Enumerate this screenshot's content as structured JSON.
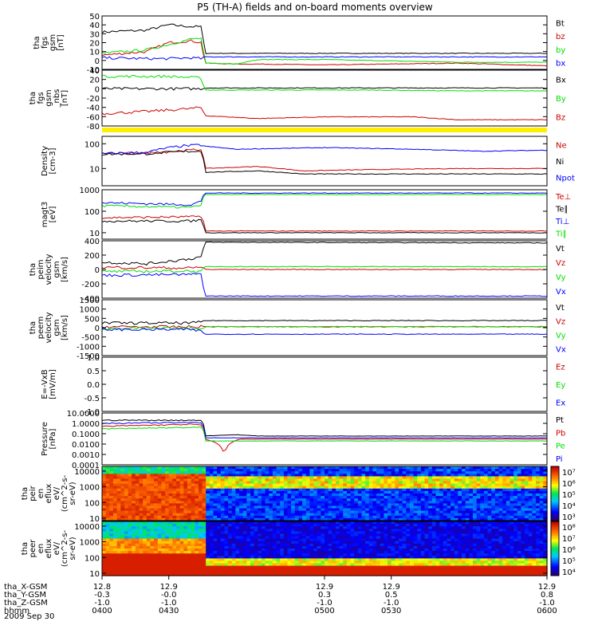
{
  "title": "P5 (TH-A) fields and on-board moments overview",
  "date_label": "2009 Sep 30",
  "colors": {
    "black": "#000000",
    "red": "#d00000",
    "green": "#00e000",
    "blue": "#0000ff",
    "yellow": "#ffee00"
  },
  "chart_data": [
    {
      "type": "line",
      "panel": "fgs",
      "ylabel": [
        "tha",
        "fgs",
        "gsm",
        "[nT]"
      ],
      "ylim": [
        -10,
        50
      ],
      "yticks": [
        "50",
        "40",
        "30",
        "20",
        "10",
        "0",
        "-10"
      ],
      "xlim": [
        400,
        600
      ],
      "series": [
        {
          "name": "Bt",
          "color": "#000000",
          "x": [
            400,
            420,
            430,
            440,
            445,
            446,
            460,
            470,
            500,
            560,
            600
          ],
          "values": [
            32,
            34,
            40,
            38,
            38,
            8,
            8,
            8,
            8,
            8,
            8
          ]
        },
        {
          "name": "bz",
          "color": "#d00000",
          "x": [
            400,
            420,
            430,
            440,
            445,
            446,
            460,
            470,
            500,
            560,
            600
          ],
          "values": [
            6,
            10,
            20,
            22,
            20,
            -3,
            -4,
            -4,
            -5,
            -3,
            -6
          ]
        },
        {
          "name": "by",
          "color": "#00e000",
          "x": [
            400,
            420,
            430,
            440,
            445,
            446,
            460,
            470,
            500,
            560,
            600
          ],
          "values": [
            8,
            12,
            18,
            24,
            25,
            -3,
            -4,
            1,
            1,
            -2,
            -2
          ]
        },
        {
          "name": "bx",
          "color": "#0000ff",
          "x": [
            400,
            420,
            430,
            440,
            445,
            446,
            460,
            470,
            500,
            560,
            600
          ],
          "values": [
            3,
            2,
            2,
            3,
            2,
            4,
            4,
            4,
            4,
            4,
            4
          ]
        }
      ]
    },
    {
      "type": "line",
      "panel": "fgs-pg",
      "ylabel": [
        "tha",
        "fgs",
        "gsm",
        "_nbs",
        "[nT]"
      ],
      "ylim": [
        -90,
        45
      ],
      "yticks": [
        "40",
        "20",
        "0",
        "-20",
        "-40",
        "-60",
        "-80"
      ],
      "xlim": [
        400,
        600
      ],
      "series": [
        {
          "name": "Bx",
          "color": "#000000",
          "x": [
            400,
            445,
            446,
            600
          ],
          "values": [
            0,
            0,
            2,
            2
          ]
        },
        {
          "name": "By",
          "color": "#00e000",
          "x": [
            400,
            430,
            445,
            446,
            520,
            560,
            600
          ],
          "values": [
            30,
            30,
            26,
            -3,
            -3,
            -5,
            -5
          ]
        },
        {
          "name": "Bz",
          "color": "#d00000",
          "x": [
            400,
            420,
            440,
            445,
            446,
            470,
            500,
            540,
            560,
            600
          ],
          "values": [
            -60,
            -55,
            -48,
            -45,
            -65,
            -72,
            -68,
            -68,
            -75,
            -75
          ]
        }
      ]
    },
    {
      "type": "line",
      "panel": "density",
      "ylabel": [
        "Density",
        "[cm-3]"
      ],
      "yscale": "log",
      "ylim": [
        2,
        200
      ],
      "yticks": [
        "100",
        "10"
      ],
      "xlim": [
        400,
        600
      ],
      "series": [
        {
          "name": "Ne",
          "color": "#d00000",
          "x": [
            400,
            420,
            440,
            445,
            446,
            470,
            490,
            520,
            560,
            600
          ],
          "values": [
            40,
            42,
            55,
            60,
            10,
            12,
            8,
            9,
            10,
            10
          ]
        },
        {
          "name": "Ni",
          "color": "#000000",
          "x": [
            400,
            420,
            440,
            445,
            446,
            470,
            490,
            520,
            560,
            600
          ],
          "values": [
            38,
            40,
            50,
            50,
            7,
            8,
            6,
            6,
            6,
            6
          ]
        },
        {
          "name": "Npot",
          "color": "#0000ff",
          "x": [
            400,
            420,
            435,
            445,
            446,
            460,
            500,
            540,
            570,
            600
          ],
          "values": [
            40,
            45,
            80,
            90,
            80,
            60,
            70,
            60,
            50,
            55
          ]
        }
      ]
    },
    {
      "type": "line",
      "panel": "temperature",
      "ylabel": [
        "magt3",
        "[eV]"
      ],
      "yscale": "log",
      "ylim": [
        5,
        1000
      ],
      "yticks": [
        "1000",
        "100",
        "10"
      ],
      "xlim": [
        400,
        600
      ],
      "series": [
        {
          "name": "Te⊥",
          "color": "#d00000",
          "x": [
            400,
            440,
            445,
            446,
            600
          ],
          "values": [
            50,
            55,
            60,
            12,
            12
          ]
        },
        {
          "name": "Te∥",
          "color": "#000000",
          "x": [
            400,
            440,
            445,
            446,
            600
          ],
          "values": [
            35,
            35,
            40,
            10,
            10
          ]
        },
        {
          "name": "Ti⊥",
          "color": "#0000ff",
          "x": [
            400,
            440,
            445,
            446,
            600
          ],
          "values": [
            250,
            200,
            300,
            700,
            700
          ]
        },
        {
          "name": "Ti∥",
          "color": "#00e000",
          "x": [
            400,
            440,
            445,
            446,
            600
          ],
          "values": [
            180,
            150,
            200,
            600,
            600
          ]
        }
      ]
    },
    {
      "type": "line",
      "panel": "peim-velocity",
      "ylabel": [
        "tha",
        "peim",
        "velocity",
        "gsm",
        "[km/s]"
      ],
      "ylim": [
        -400,
        400
      ],
      "yticks": [
        "400",
        "200",
        "0",
        "-200",
        "-400"
      ],
      "xlim": [
        400,
        600
      ],
      "series": [
        {
          "name": "Vt",
          "color": "#000000",
          "x": [
            400,
            420,
            440,
            445,
            446,
            600
          ],
          "values": [
            100,
            80,
            150,
            180,
            380,
            370
          ]
        },
        {
          "name": "Vz",
          "color": "#d00000",
          "x": [
            400,
            440,
            445,
            446,
            600
          ],
          "values": [
            30,
            20,
            40,
            0,
            0
          ]
        },
        {
          "name": "Vy",
          "color": "#00e000",
          "x": [
            400,
            440,
            445,
            446,
            600
          ],
          "values": [
            -30,
            -20,
            -40,
            40,
            40
          ]
        },
        {
          "name": "Vx",
          "color": "#0000ff",
          "x": [
            400,
            440,
            445,
            446,
            600
          ],
          "values": [
            -80,
            -70,
            -60,
            -370,
            -370
          ]
        }
      ]
    },
    {
      "type": "line",
      "panel": "peem-velocity",
      "ylabel": [
        "tha",
        "peem",
        "velocity",
        "gsm",
        "[km/s]"
      ],
      "ylim": [
        -1500,
        1500
      ],
      "yticks": [
        "1500",
        "1000",
        "500",
        "0",
        "-500",
        "-1000",
        "-1500"
      ],
      "xlim": [
        400,
        600
      ],
      "series": [
        {
          "name": "Vt",
          "color": "#000000",
          "x": [
            400,
            440,
            445,
            446,
            600
          ],
          "values": [
            250,
            250,
            300,
            380,
            380
          ]
        },
        {
          "name": "Vz",
          "color": "#d00000",
          "x": [
            400,
            440,
            445,
            446,
            600
          ],
          "values": [
            50,
            40,
            60,
            50,
            50
          ]
        },
        {
          "name": "Vy",
          "color": "#00e000",
          "x": [
            400,
            440,
            445,
            446,
            600
          ],
          "values": [
            -50,
            -40,
            -60,
            60,
            60
          ]
        },
        {
          "name": "Vx",
          "color": "#0000ff",
          "x": [
            400,
            440,
            445,
            446,
            600
          ],
          "values": [
            -100,
            -100,
            -200,
            -350,
            -350
          ]
        }
      ]
    },
    {
      "type": "line",
      "panel": "efield",
      "ylabel": [
        "E=-VxB",
        "[mV/m]"
      ],
      "ylim": [
        -1,
        1
      ],
      "yticks": [
        "1.0",
        "0.5",
        "0.0",
        "-0.5",
        "-1.0"
      ],
      "xlim": [
        400,
        600
      ],
      "series": [
        {
          "name": "Ez",
          "color": "#d00000",
          "x": [],
          "values": []
        },
        {
          "name": "Ey",
          "color": "#00e000",
          "x": [],
          "values": []
        },
        {
          "name": "Ex",
          "color": "#0000ff",
          "x": [],
          "values": []
        }
      ]
    },
    {
      "type": "line",
      "panel": "pressure",
      "ylabel": [
        "Pressure",
        "[nPa]"
      ],
      "yscale": "log",
      "ylim": [
        0.0001,
        10
      ],
      "yticks": [
        "10.0000",
        "1.0000",
        "0.1000",
        "0.0100",
        "0.0010",
        "0.0001"
      ],
      "xlim": [
        400,
        600
      ],
      "series": [
        {
          "name": "Pt",
          "color": "#000000",
          "x": [
            400,
            440,
            445,
            446,
            460,
            470,
            600
          ],
          "values": [
            2.0,
            2.0,
            2.0,
            0.06,
            0.08,
            0.06,
            0.06
          ]
        },
        {
          "name": "Pb",
          "color": "#d00000",
          "x": [
            400,
            440,
            445,
            446,
            455,
            462,
            470,
            600
          ],
          "values": [
            0.5,
            0.8,
            0.7,
            0.03,
            0.0003,
            0.03,
            0.03,
            0.03
          ]
        },
        {
          "name": "Pe",
          "color": "#00e000",
          "x": [
            400,
            440,
            445,
            446,
            600
          ],
          "values": [
            0.3,
            0.4,
            0.4,
            0.02,
            0.02
          ]
        },
        {
          "name": "Pi",
          "color": "#0000ff",
          "x": [
            400,
            440,
            445,
            446,
            600
          ],
          "values": [
            1.0,
            1.2,
            1.2,
            0.04,
            0.04
          ]
        }
      ]
    },
    {
      "type": "heatmap",
      "panel": "peir-spectrogram",
      "ylabel": [
        "tha",
        "peir",
        "en",
        "eflux",
        "eV/",
        "(cm^2-s-",
        "sr-eV)"
      ],
      "yscale": "log",
      "ylim": [
        7,
        20000
      ],
      "yticks": [
        "10000",
        "1000",
        "100",
        "10"
      ],
      "colorbar": {
        "ticks": [
          "10⁷",
          "10⁶",
          "10⁵",
          "10⁴",
          "10³"
        ]
      }
    },
    {
      "type": "heatmap",
      "panel": "peer-spectrogram",
      "ylabel": [
        "tha",
        "peer",
        "en",
        "eflux",
        "eV/",
        "(cm^2-s-",
        "sr-eV)"
      ],
      "yscale": "log",
      "ylim": [
        7,
        20000
      ],
      "yticks": [
        "10000",
        "1000",
        "100",
        "10"
      ],
      "colorbar": {
        "ticks": [
          "10⁸",
          "10⁷",
          "10⁶",
          "10⁵",
          "10⁴"
        ]
      }
    }
  ],
  "xaxis": {
    "row_labels": [
      "tha_X-GSM",
      "tha_Y-GSM",
      "tha_Z-GSM",
      "hhmm"
    ],
    "ticks": [
      {
        "t": 400,
        "values": [
          "12.8",
          "-0.3",
          "-1.0",
          "0400"
        ]
      },
      {
        "t": 430,
        "values": [
          "12.9",
          "-0.0",
          "-1.0",
          "0430"
        ]
      },
      {
        "t": 500,
        "values": [
          "12.9",
          "0.3",
          "-1.0",
          "0500"
        ]
      },
      {
        "t": 530,
        "values": [
          "12.9",
          "0.5",
          "-1.0",
          "0530"
        ]
      },
      {
        "t": 600,
        "values": [
          "12.9",
          "0.8",
          "-1.0",
          "0600"
        ]
      }
    ]
  }
}
